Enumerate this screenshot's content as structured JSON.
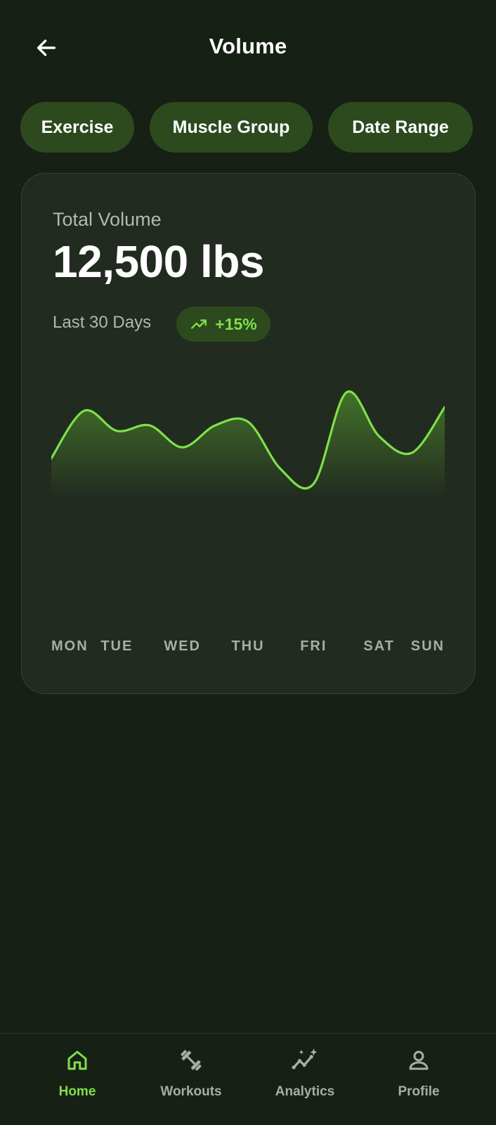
{
  "header": {
    "title": "Volume",
    "back_icon": "arrow-left-icon"
  },
  "filters": [
    {
      "label": "Exercise"
    },
    {
      "label": "Muscle Group"
    },
    {
      "label": "Date Range"
    }
  ],
  "summary": {
    "label": "Total Volume",
    "value": "12,500 lbs",
    "period": "Last 30 Days",
    "trend": "+15%",
    "trend_icon": "trending-up-icon"
  },
  "chart_data": {
    "type": "area",
    "title": "",
    "x_labels": [
      "MON",
      "TUE",
      "WED",
      "THU",
      "FRI",
      "SAT",
      "SUN"
    ],
    "x": [
      0,
      0.5,
      1,
      1.5,
      2,
      2.5,
      3,
      3.5,
      4,
      4.5,
      5,
      5.5,
      6
    ],
    "values": [
      52,
      78,
      67,
      70,
      58,
      70,
      72,
      46,
      38,
      88,
      64,
      55,
      80
    ],
    "ylim": [
      0,
      100
    ],
    "grid": false,
    "legend": "none",
    "line_color": "#7ee04a"
  },
  "nav": {
    "items": [
      {
        "label": "Home",
        "icon": "home-icon",
        "active": true
      },
      {
        "label": "Workouts",
        "icon": "dumbbell-icon",
        "active": false
      },
      {
        "label": "Analytics",
        "icon": "analytics-sparkle-icon",
        "active": false
      },
      {
        "label": "Profile",
        "icon": "user-icon",
        "active": false
      }
    ]
  },
  "colors": {
    "background": "#172015",
    "card": "#222b20",
    "chip": "#2c4a1e",
    "accent": "#7ee04a",
    "muted_text": "#b3b8b0"
  }
}
